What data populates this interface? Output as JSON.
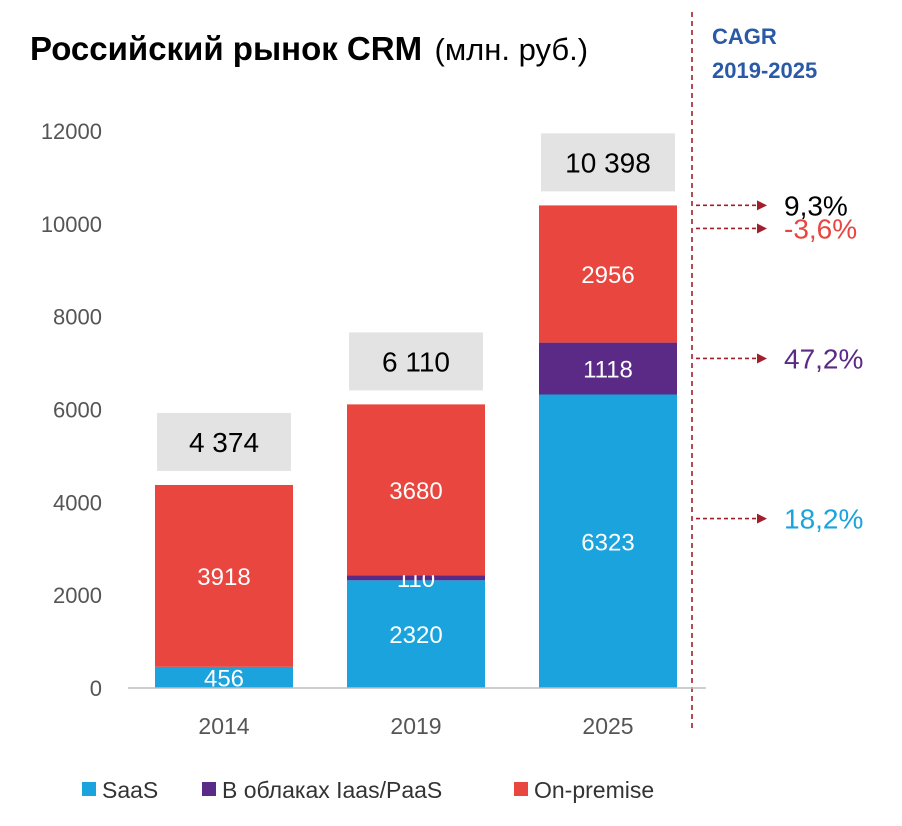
{
  "chart_data": {
    "type": "bar",
    "stacked": true,
    "title": "Российский рынок CRM",
    "subtitle": "(млн. руб.)",
    "categories": [
      "2014",
      "2019",
      "2025"
    ],
    "series": [
      {
        "name": "SaaS",
        "color": "#1aa3dd",
        "values": [
          456,
          2320,
          6323
        ]
      },
      {
        "name": "В облаках Iaas/PaaS",
        "color": "#5b2a86",
        "values": [
          0,
          110,
          1118
        ]
      },
      {
        "name": "On-premise",
        "color": "#e8463e",
        "values": [
          3918,
          3680,
          2956
        ]
      }
    ],
    "segment_labels": [
      [
        "456",
        "",
        "3918"
      ],
      [
        "2320",
        "110",
        "3680"
      ],
      [
        "6323",
        "1118",
        "2956"
      ]
    ],
    "totals": [
      "4 374",
      "6 110",
      "10 398"
    ],
    "totals_values": [
      4374,
      6110,
      10398
    ],
    "ylim": [
      0,
      12000
    ],
    "yticks": [
      0,
      2000,
      4000,
      6000,
      8000,
      10000,
      12000
    ],
    "ytick_labels": [
      "0",
      "2000",
      "4000",
      "6000",
      "8000",
      "10000",
      "12000"
    ],
    "grid": false,
    "legend_position": "bottom",
    "cagr": {
      "heading_line1": "CAGR",
      "heading_line2": "2019-2025",
      "items": [
        {
          "label": "9,3%",
          "target": 10398,
          "color": "#000000",
          "name": "cagr-total"
        },
        {
          "label": "-3,6%",
          "target": 9900,
          "color": "#e8463e",
          "name": "cagr-on-premise"
        },
        {
          "label": "47,2%",
          "target": 7100,
          "color": "#5b2a86",
          "name": "cagr-cloud"
        },
        {
          "label": "18,2%",
          "target": 3650,
          "color": "#1aa3dd",
          "name": "cagr-saas"
        }
      ]
    }
  }
}
